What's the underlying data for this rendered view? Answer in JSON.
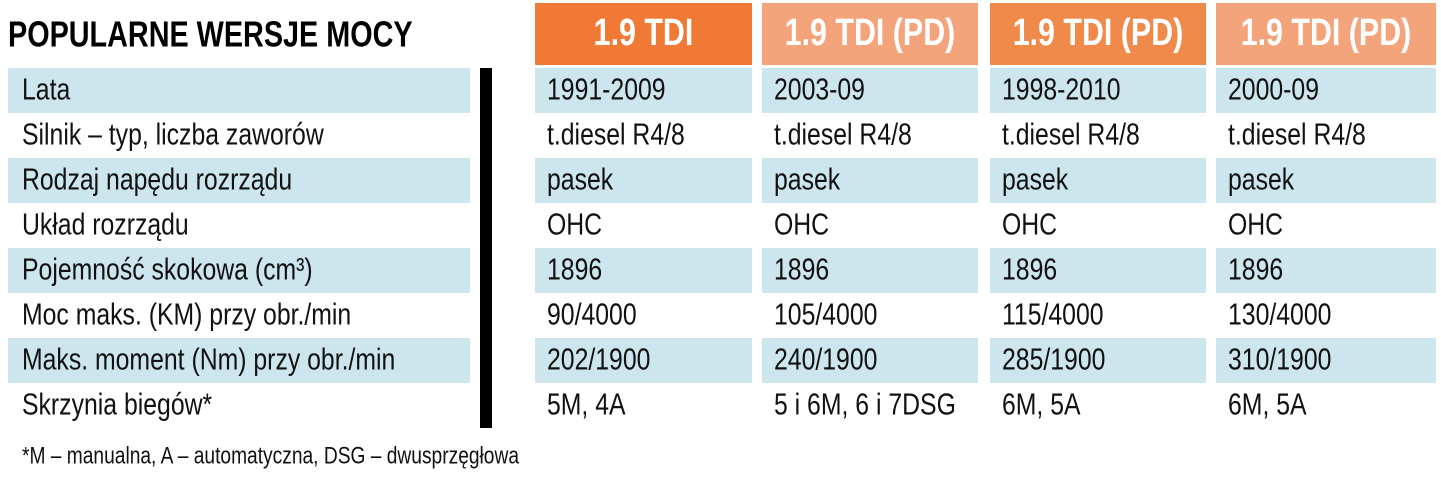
{
  "title": "POPULARNE WERSJE MOCY",
  "table": {
    "header": [
      "1.9 TDI",
      "1.9 TDI (PD)",
      "1.9 TDI (PD)",
      "1.9 TDI (PD)"
    ],
    "rows": [
      [
        "Lata",
        "1991-2009",
        "2003-09",
        "1998-2010",
        "2000-09"
      ],
      [
        "Silnik – typ, liczba zaworów",
        "t.diesel R4/8",
        "t.diesel R4/8",
        "t.diesel R4/8",
        "t.diesel R4/8"
      ],
      [
        "Rodzaj napędu rozrządu",
        "pasek",
        "pasek",
        "pasek",
        "pasek"
      ],
      [
        "Układ rozrządu",
        "OHC",
        "OHC",
        "OHC",
        "OHC"
      ],
      [
        "Pojemność skokowa (cm³)",
        "1896",
        "1896",
        "1896",
        "1896"
      ],
      [
        "Moc maks. (KM) przy obr./min",
        "90/4000",
        "105/4000",
        "115/4000",
        "130/4000"
      ],
      [
        "Maks. moment (Nm) przy obr./min",
        "202/1900",
        "240/1900",
        "285/1900",
        "310/1900"
      ],
      [
        "Skrzynia biegów*",
        "5M, 4A",
        "5 i 6M, 6 i 7DSG",
        "6M, 5A",
        "6M, 5A"
      ]
    ]
  },
  "footnote": "*M – manualna, A – automatyczna, DSG – dwusprzęgłowa"
}
